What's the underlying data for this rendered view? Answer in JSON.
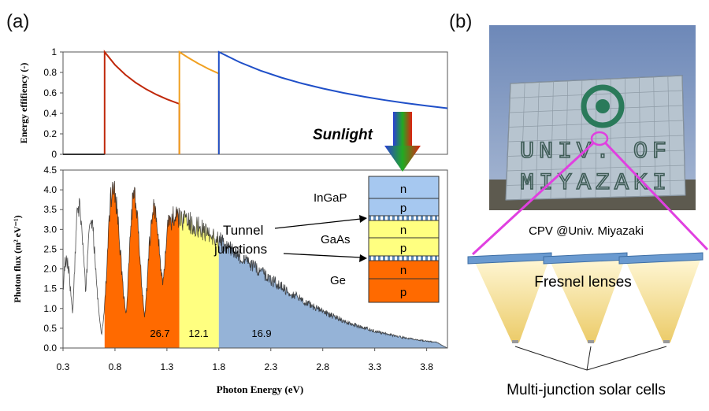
{
  "panel_a_label": "(a)",
  "panel_b_label": "(b)",
  "chart_data": [
    {
      "type": "line",
      "ylabel": "Energy effifiency (-)",
      "ylim": [
        0,
        1
      ],
      "yticks": [
        "0",
        "0.2",
        "0.4",
        "0.6",
        "0.8",
        "1"
      ],
      "xlim": [
        0.3,
        4.0
      ],
      "grid": false,
      "series": [
        {
          "color": "#c0280a",
          "x": [
            0.7,
            0.7,
            0.8,
            0.9,
            1.0,
            1.1,
            1.2,
            1.3,
            1.42,
            1.42
          ],
          "y": [
            0,
            1.0,
            0.875,
            0.778,
            0.7,
            0.636,
            0.583,
            0.538,
            0.493,
            0
          ]
        },
        {
          "color": "#f0a020",
          "x": [
            1.42,
            1.42,
            1.5,
            1.6,
            1.7,
            1.8,
            1.8
          ],
          "y": [
            0,
            1.0,
            0.947,
            0.888,
            0.835,
            0.789,
            0
          ]
        },
        {
          "color": "#1f4fc8",
          "x": [
            1.8,
            1.8,
            2.0,
            2.2,
            2.4,
            2.6,
            2.8,
            3.0,
            3.2,
            3.4,
            3.6,
            3.8,
            4.0
          ],
          "y": [
            0,
            1.0,
            0.9,
            0.818,
            0.75,
            0.692,
            0.643,
            0.6,
            0.5625,
            0.529,
            0.5,
            0.474,
            0.45
          ]
        },
        {
          "color": "#333333",
          "x": [
            0.3,
            0.7
          ],
          "y": [
            0,
            0
          ]
        }
      ]
    },
    {
      "type": "area",
      "xlabel": "Photon Energy (eV)",
      "ylabel": "Photon flux (m² eV⁻¹)",
      "xlim": [
        0.3,
        4.0
      ],
      "ylim": [
        0,
        4.5
      ],
      "xticks": [
        "0.3",
        "0.8",
        "1.3",
        "1.8",
        "2.3",
        "2.8",
        "3.3",
        "3.8"
      ],
      "yticks": [
        "0.0",
        "0.5",
        "1.0",
        "1.5",
        "2.0",
        "2.5",
        "3.0",
        "3.5",
        "4.0",
        "4.5"
      ],
      "grid": false,
      "annotations": [
        "26.7",
        "12.1",
        "16.9"
      ],
      "bands": [
        {
          "color": "#ff6a00",
          "x_range": [
            0.7,
            1.42
          ],
          "value_label": "26.7"
        },
        {
          "color": "#ffff80",
          "x_range": [
            1.42,
            1.8
          ],
          "value_label": "12.1"
        },
        {
          "color": "#95b3d7",
          "x_range": [
            1.8,
            4.0
          ],
          "value_label": "16.9"
        }
      ]
    }
  ],
  "cell_diagram": {
    "sunlight_label": "Sunlight",
    "tunnel_label_line1": "Tunnel",
    "tunnel_label_line2": "junctions",
    "subcells": [
      {
        "name": "InGaP",
        "color": "#a6c8f0",
        "n": "n",
        "p": "p"
      },
      {
        "name": "GaAs",
        "color": "#ffff80",
        "n": "n",
        "p": "p"
      },
      {
        "name": "Ge",
        "color": "#ff6a00",
        "n": "n",
        "p": "p"
      }
    ]
  },
  "panel_b": {
    "photo_text_line1": "UNIV.   OF",
    "photo_text_line2": "MIYAZAKI",
    "caption": "CPV @Univ. Miyazaki",
    "lens_label": "Fresnel lenses",
    "cells_label": "Multi-junction solar cells",
    "accent_color": "#e040e0"
  }
}
